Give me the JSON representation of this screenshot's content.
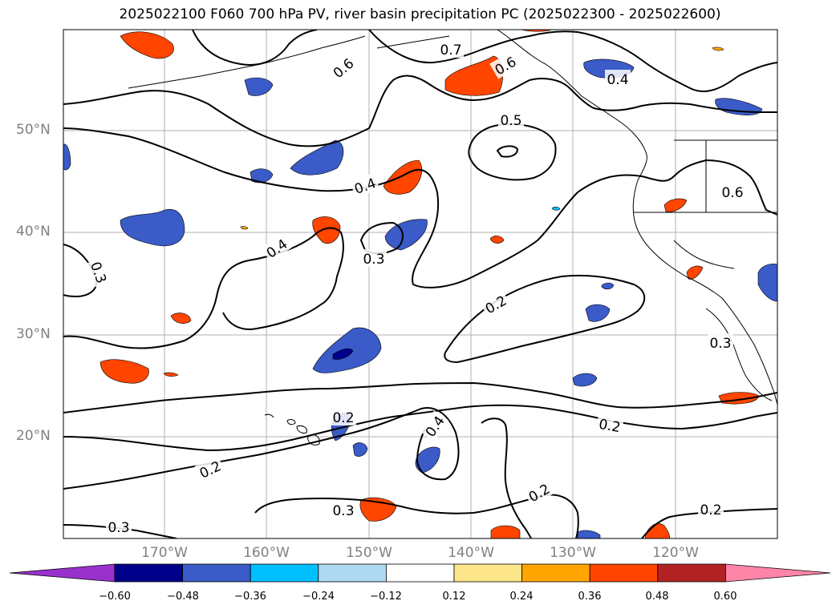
{
  "title": "2025022100 F060 700 hPa PV, river basin precipitation PC (2025022300 - 2025022600)",
  "latitude_labels": [
    "50°N",
    "40°N",
    "30°N",
    "20°N"
  ],
  "longitude_labels": [
    "170°W",
    "160°W",
    "150°W",
    "140°W",
    "130°W",
    "120°W"
  ],
  "contour_labels": [
    "0.7",
    "0.6",
    "0.6",
    "0.4",
    "0.5",
    "0.4",
    "0.6",
    "0.4",
    "0.3",
    "0.3",
    "0.2",
    "0.3",
    "0.2",
    "0.4",
    "0.2",
    "0.2",
    "0.2",
    "0.3",
    "0.3",
    "0.2"
  ],
  "colorbar": {
    "colors": [
      "#9932cc",
      "#00008b",
      "#3a5bc8",
      "#00bfff",
      "#add8f0",
      "#ffffff",
      "#fde68a",
      "#ffa500",
      "#ff4500",
      "#b22222",
      "#ff85a8"
    ],
    "tick_labels": [
      "−0.60",
      "−0.48",
      "−0.36",
      "−0.24",
      "−0.12",
      "0.12",
      "0.24",
      "0.36",
      "0.48",
      "0.60"
    ]
  }
}
